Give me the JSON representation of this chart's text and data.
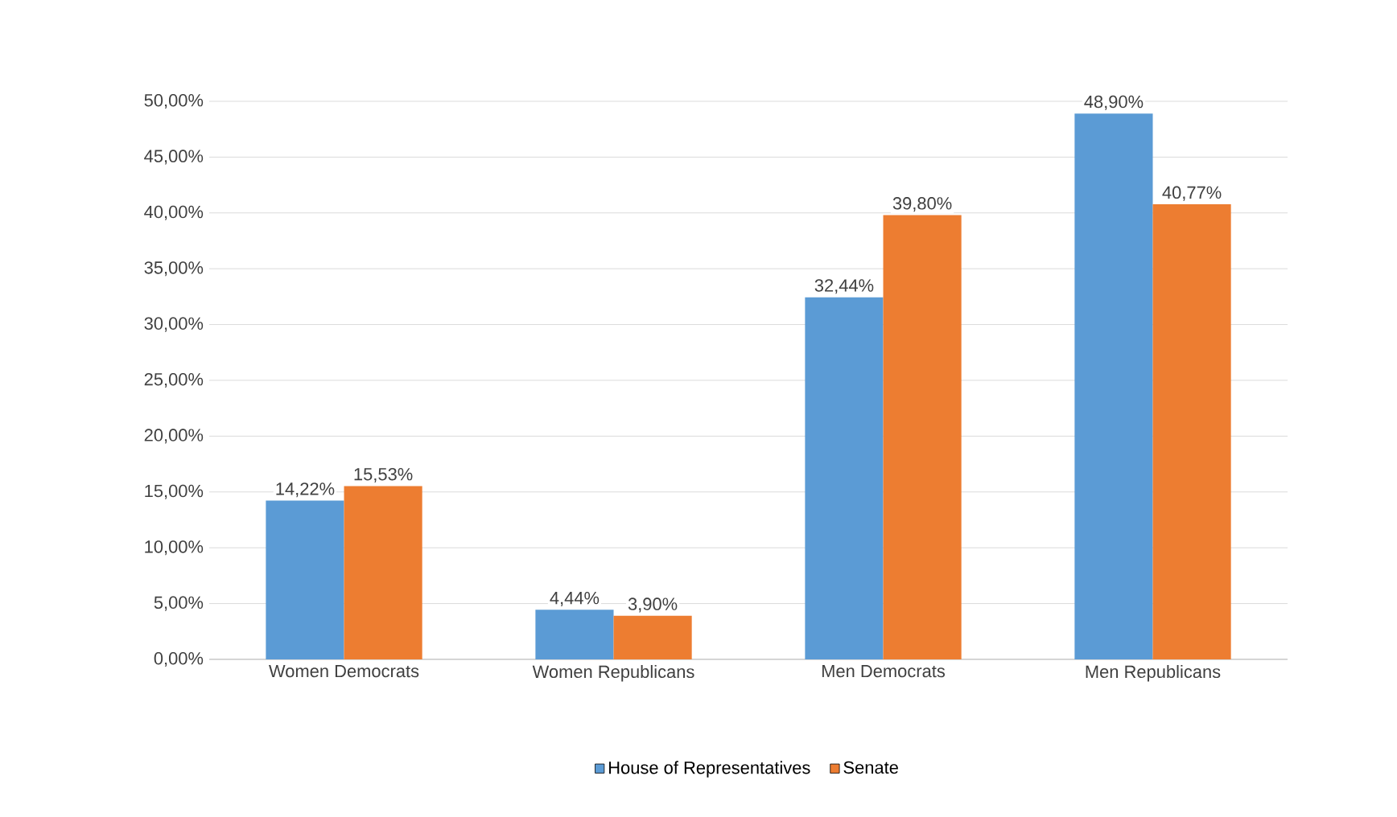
{
  "chart_data": {
    "type": "bar",
    "categories": [
      "Women Democrats",
      "Women Republicans",
      "Men Democrats",
      "Men Republicans"
    ],
    "series": [
      {
        "name": "House of Representatives",
        "color": "#5b9bd5",
        "values": [
          14.22,
          4.44,
          32.44,
          48.9
        ],
        "value_labels": [
          "14,22%",
          "4,44%",
          "32,44%",
          "48,90%"
        ]
      },
      {
        "name": "Senate",
        "color": "#ed7d31",
        "values": [
          15.53,
          3.9,
          39.8,
          40.77
        ],
        "value_labels": [
          "15,53%",
          "3,90%",
          "39,80%",
          "40,77%"
        ]
      }
    ],
    "ylim": [
      0,
      50
    ],
    "yticks": [
      {
        "value": 0,
        "label": "0,00%"
      },
      {
        "value": 5,
        "label": "5,00%"
      },
      {
        "value": 10,
        "label": "10,00%"
      },
      {
        "value": 15,
        "label": "15,00%"
      },
      {
        "value": 20,
        "label": "20,00%"
      },
      {
        "value": 25,
        "label": "25,00%"
      },
      {
        "value": 30,
        "label": "30,00%"
      },
      {
        "value": 35,
        "label": "35,00%"
      },
      {
        "value": 40,
        "label": "40,00%"
      },
      {
        "value": 45,
        "label": "45,00%"
      },
      {
        "value": 50,
        "label": "50,00%"
      }
    ],
    "grid": "y",
    "legend": "bottom"
  }
}
